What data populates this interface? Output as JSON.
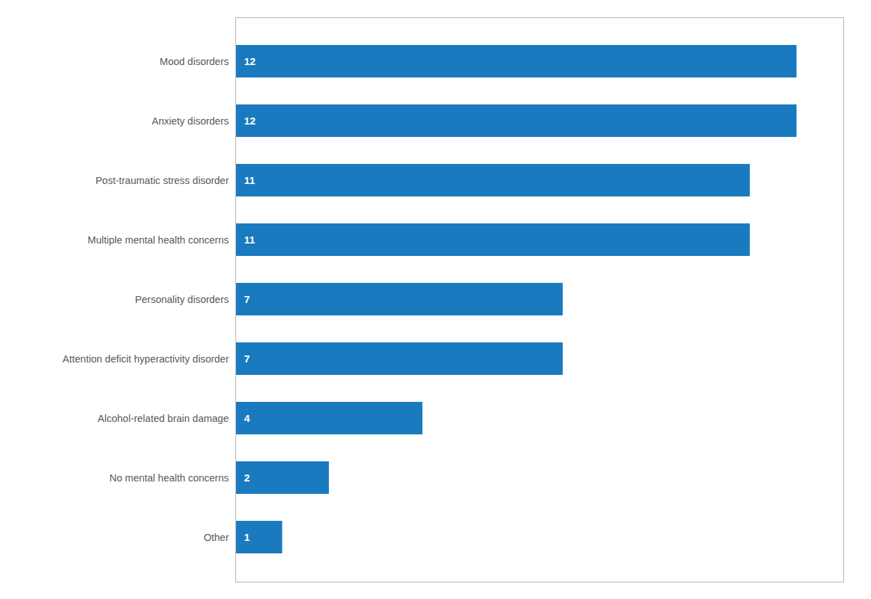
{
  "chart_data": {
    "type": "bar",
    "orientation": "horizontal",
    "categories": [
      "Other",
      "No mental health concerns",
      "Alcohol-related brain damage",
      "Attention deficit hyperactivity disorder",
      "Personality disorders",
      "Multiple mental health concerns",
      "Post-traumatic stress disorder",
      "Anxiety disorders",
      "Mood disorders"
    ],
    "values": [
      1,
      2,
      4,
      7,
      7,
      11,
      11,
      12,
      12
    ],
    "color": "#1a7abf",
    "xlim": [
      0,
      13
    ],
    "data_labels": true,
    "tick_labels": "y",
    "grid": false
  }
}
